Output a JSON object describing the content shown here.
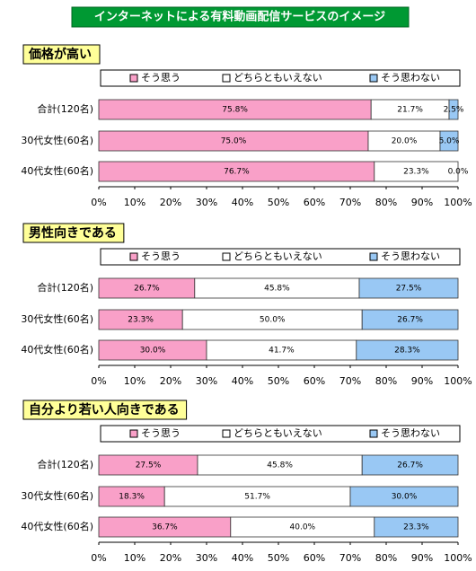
{
  "title": "インターネットによる有料動画配信サービスのイメージ",
  "chart_data": [
    {
      "type": "bar",
      "title": "価格が高い",
      "categories": [
        "合計(120名)",
        "30代女性(60名)",
        "40代女性(60名)"
      ],
      "series": [
        {
          "name": "そう思う",
          "color": "#f9a0c8",
          "values": [
            75.8,
            75.0,
            76.7
          ],
          "value_labels": [
            "75.8%",
            "75.0%",
            "76.7%"
          ]
        },
        {
          "name": "どちらともいえない",
          "color": "#ffffff",
          "values": [
            21.7,
            20.0,
            23.3
          ],
          "value_labels": [
            "21.7%",
            "20.0%",
            "23.3%"
          ]
        },
        {
          "name": "そう思わない",
          "color": "#99c8f4",
          "values": [
            2.5,
            5.0,
            0.0
          ],
          "value_labels": [
            "2.5%",
            "5.0%",
            "0.0%"
          ]
        }
      ],
      "xlim": [
        0,
        100
      ],
      "xticks": [
        {
          "value": 0,
          "label": "0%"
        },
        {
          "value": 10,
          "label": "10%"
        },
        {
          "value": 20,
          "label": "20%"
        },
        {
          "value": 30,
          "label": "30%"
        },
        {
          "value": 40,
          "label": "40%"
        },
        {
          "value": 50,
          "label": "50%"
        },
        {
          "value": 60,
          "label": "60%"
        },
        {
          "value": 70,
          "label": "70%"
        },
        {
          "value": 80,
          "label": "80%"
        },
        {
          "value": 90,
          "label": "90%"
        },
        {
          "value": 100,
          "label": "100%"
        }
      ]
    },
    {
      "type": "bar",
      "title": "男性向きである",
      "categories": [
        "合計(120名)",
        "30代女性(60名)",
        "40代女性(60名)"
      ],
      "series": [
        {
          "name": "そう思う",
          "color": "#f9a0c8",
          "values": [
            26.7,
            23.3,
            30.0
          ],
          "value_labels": [
            "26.7%",
            "23.3%",
            "30.0%"
          ]
        },
        {
          "name": "どちらともいえない",
          "color": "#ffffff",
          "values": [
            45.8,
            50.0,
            41.7
          ],
          "value_labels": [
            "45.8%",
            "50.0%",
            "41.7%"
          ]
        },
        {
          "name": "そう思わない",
          "color": "#99c8f4",
          "values": [
            27.5,
            26.7,
            28.3
          ],
          "value_labels": [
            "27.5%",
            "26.7%",
            "28.3%"
          ]
        }
      ],
      "xlim": [
        0,
        100
      ],
      "xticks": [
        {
          "value": 0,
          "label": "0%"
        },
        {
          "value": 10,
          "label": "10%"
        },
        {
          "value": 20,
          "label": "20%"
        },
        {
          "value": 30,
          "label": "30%"
        },
        {
          "value": 40,
          "label": "40%"
        },
        {
          "value": 50,
          "label": "50%"
        },
        {
          "value": 60,
          "label": "60%"
        },
        {
          "value": 70,
          "label": "70%"
        },
        {
          "value": 80,
          "label": "80%"
        },
        {
          "value": 90,
          "label": "90%"
        },
        {
          "value": 100,
          "label": "100%"
        }
      ]
    },
    {
      "type": "bar",
      "title": "自分より若い人向きである",
      "categories": [
        "合計(120名)",
        "30代女性(60名)",
        "40代女性(60名)"
      ],
      "series": [
        {
          "name": "そう思う",
          "color": "#f9a0c8",
          "values": [
            27.5,
            18.3,
            36.7
          ],
          "value_labels": [
            "27.5%",
            "18.3%",
            "36.7%"
          ]
        },
        {
          "name": "どちらともいえない",
          "color": "#ffffff",
          "values": [
            45.8,
            51.7,
            40.0
          ],
          "value_labels": [
            "45.8%",
            "51.7%",
            "40.0%"
          ]
        },
        {
          "name": "そう思わない",
          "color": "#99c8f4",
          "values": [
            26.7,
            30.0,
            23.3
          ],
          "value_labels": [
            "26.7%",
            "30.0%",
            "23.3%"
          ]
        }
      ],
      "xlim": [
        0,
        100
      ],
      "xticks": [
        {
          "value": 0,
          "label": "0%"
        },
        {
          "value": 10,
          "label": "10%"
        },
        {
          "value": 20,
          "label": "20%"
        },
        {
          "value": 30,
          "label": "30%"
        },
        {
          "value": 40,
          "label": "40%"
        },
        {
          "value": 50,
          "label": "50%"
        },
        {
          "value": 60,
          "label": "60%"
        },
        {
          "value": 70,
          "label": "70%"
        },
        {
          "value": 80,
          "label": "80%"
        },
        {
          "value": 90,
          "label": "90%"
        },
        {
          "value": 100,
          "label": "100%"
        }
      ]
    }
  ]
}
